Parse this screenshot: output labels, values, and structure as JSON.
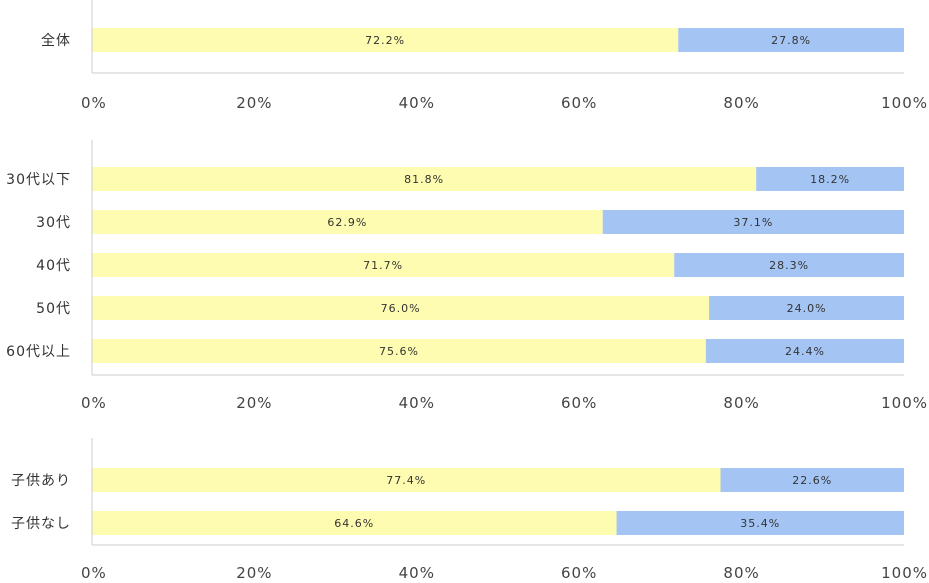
{
  "colors": {
    "series_1": "#fdfcb0",
    "series_2": "#a4c4f4",
    "axis": "#cccccc"
  },
  "chart_data": [
    {
      "type": "bar",
      "orientation": "horizontal",
      "stacked": true,
      "categories": [
        "全体"
      ],
      "series": [
        {
          "values": [
            72.2
          ],
          "labels": [
            "72.2%"
          ]
        },
        {
          "values": [
            27.8
          ],
          "labels": [
            "27.8%"
          ]
        }
      ],
      "xlim": [
        0,
        100
      ],
      "ticks": [
        "0%",
        "20%",
        "40%",
        "60%",
        "80%",
        "100%"
      ],
      "grid": false
    },
    {
      "type": "bar",
      "orientation": "horizontal",
      "stacked": true,
      "categories": [
        "30代以下",
        "30代",
        "40代",
        "50代",
        "60代以上"
      ],
      "series": [
        {
          "values": [
            81.8,
            62.9,
            71.7,
            76.0,
            75.6
          ],
          "labels": [
            "81.8%",
            "62.9%",
            "71.7%",
            "76.0%",
            "75.6%"
          ]
        },
        {
          "values": [
            18.2,
            37.1,
            28.3,
            24.0,
            24.4
          ],
          "labels": [
            "18.2%",
            "37.1%",
            "28.3%",
            "24.0%",
            "24.4%"
          ]
        }
      ],
      "xlim": [
        0,
        100
      ],
      "ticks": [
        "0%",
        "20%",
        "40%",
        "60%",
        "80%",
        "100%"
      ],
      "grid": false
    },
    {
      "type": "bar",
      "orientation": "horizontal",
      "stacked": true,
      "categories": [
        "子供あり",
        "子供なし"
      ],
      "series": [
        {
          "values": [
            77.4,
            64.6
          ],
          "labels": [
            "77.4%",
            "64.6%"
          ]
        },
        {
          "values": [
            22.6,
            35.4
          ],
          "labels": [
            "22.6%",
            "35.4%"
          ]
        }
      ],
      "xlim": [
        0,
        100
      ],
      "ticks": [
        "0%",
        "20%",
        "40%",
        "60%",
        "80%",
        "100%"
      ],
      "grid": false
    }
  ]
}
